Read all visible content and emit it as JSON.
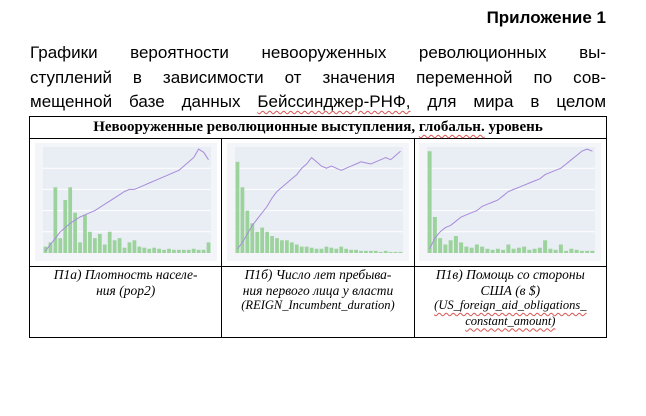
{
  "appendix_title": "Приложение 1",
  "caption_lines": [
    "Графики вероятности невооруженных революционных вы-",
    "ступлений в зависимости от значения переменной по сов-",
    "мещенной базе данных Бейссинджер-РНФ, для мира в целом"
  ],
  "caption_misspelled_word": "Бейссинджер-РНФ,",
  "table": {
    "header": "Невооруженные революционные выступления, глобальн. уровень",
    "header_misspelled_word": "глобальн.",
    "captions": [
      {
        "label": "П1а) Плотность населе-ния (pop2)",
        "line1": "П1а) Плотность населе-",
        "line2": "ния (pop2)",
        "line3": "",
        "line4": ""
      },
      {
        "label": "П1б) Число лет пребыва-ния первого лица у власти (REIGN_Incumbent_duration)",
        "line1": "П1б) Число лет пребыва-",
        "line2": "ния первого лица у власти",
        "line3": "(REIGN_Incumbent_duration)",
        "line4": ""
      },
      {
        "label": "П1в) Помощь со стороны США (в $) (US_foreign_aid_obligations_constant_amount)",
        "line1": "П1в) Помощь со стороны",
        "line2": "США (в $)",
        "line3": "(US_foreign_aid_obligations_",
        "line4": "constant_amount)"
      }
    ]
  },
  "chart_data": [
    {
      "type": "bar",
      "values": [
        6,
        10,
        62,
        14,
        50,
        62,
        38,
        10,
        36,
        20,
        14,
        18,
        8,
        20,
        12,
        14,
        5,
        10,
        12,
        6,
        5,
        4,
        5,
        4,
        3,
        4,
        3,
        3,
        3,
        3,
        4,
        3,
        3,
        10
      ],
      "line": [
        2,
        8,
        14,
        20,
        24,
        28,
        31,
        34,
        36,
        38,
        40,
        43,
        46,
        49,
        52,
        55,
        58,
        60,
        60,
        62,
        64,
        66,
        68,
        70,
        72,
        74,
        76,
        78,
        82,
        86,
        90,
        98,
        95,
        88
      ],
      "bar_color": "#9cd39c",
      "line_color": "#a78bda",
      "grid": true
    },
    {
      "type": "bar",
      "values": [
        86,
        62,
        40,
        28,
        20,
        24,
        20,
        16,
        14,
        12,
        12,
        10,
        8,
        6,
        6,
        5,
        4,
        4,
        6,
        5,
        4,
        6,
        4,
        3,
        3,
        2,
        2,
        2,
        2,
        1,
        2,
        1,
        1,
        1
      ],
      "line": [
        4,
        10,
        18,
        26,
        32,
        38,
        44,
        52,
        58,
        62,
        66,
        70,
        74,
        80,
        84,
        90,
        86,
        82,
        80,
        82,
        80,
        78,
        80,
        82,
        84,
        86,
        85,
        84,
        86,
        88,
        90,
        88,
        92,
        96
      ],
      "bar_color": "#9cd39c",
      "line_color": "#a78bda",
      "grid": true
    },
    {
      "type": "bar",
      "values": [
        96,
        34,
        14,
        8,
        12,
        16,
        10,
        6,
        5,
        8,
        6,
        4,
        3,
        4,
        3,
        8,
        4,
        5,
        6,
        3,
        4,
        5,
        12,
        4,
        3,
        8,
        2,
        4,
        3,
        2,
        2,
        2
      ],
      "line": [
        4,
        14,
        20,
        24,
        26,
        30,
        34,
        36,
        38,
        40,
        44,
        46,
        48,
        50,
        54,
        58,
        60,
        62,
        64,
        66,
        68,
        70,
        74,
        76,
        78,
        80,
        84,
        88,
        92,
        96,
        98,
        96
      ],
      "bar_color": "#9cd39c",
      "line_color": "#a78bda",
      "grid": true
    }
  ]
}
